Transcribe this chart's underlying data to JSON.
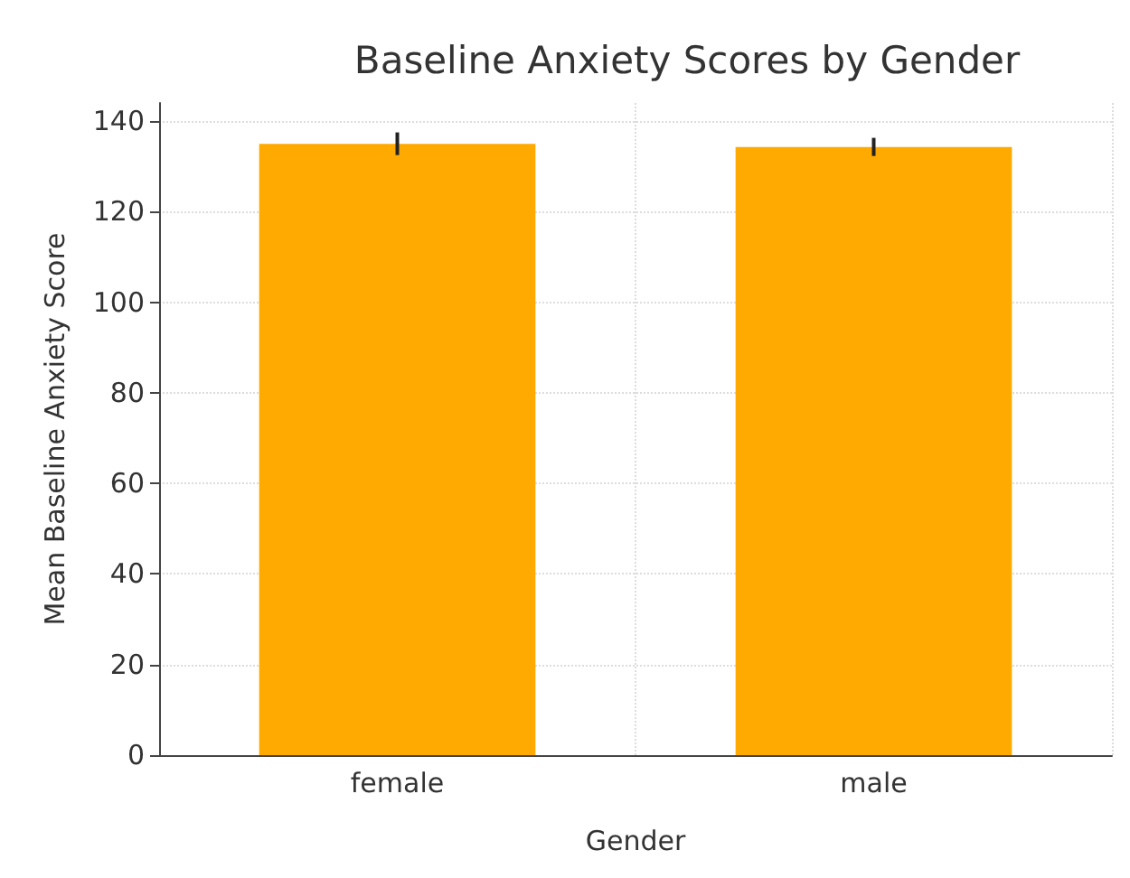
{
  "chart_data": {
    "type": "bar",
    "title": "Baseline Anxiety Scores by Gender",
    "xlabel": "Gender",
    "ylabel": "Mean Baseline Anxiety Score",
    "categories": [
      "female",
      "male"
    ],
    "values": [
      135,
      134.3
    ],
    "errors": [
      2.5,
      2
    ],
    "color": "#ffaa00",
    "ylim": [
      0,
      144
    ],
    "yticks": [
      0,
      20,
      40,
      60,
      80,
      100,
      120,
      140
    ],
    "grid": true
  }
}
